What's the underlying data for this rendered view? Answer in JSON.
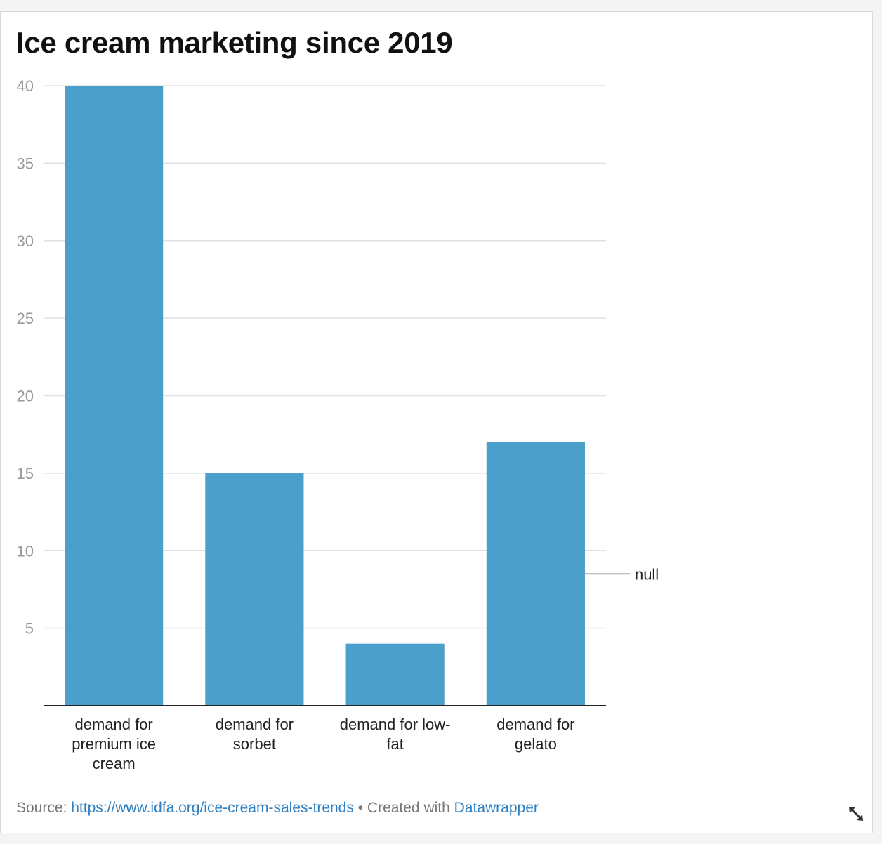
{
  "title": "Ice cream marketing since 2019",
  "chart_data": {
    "type": "bar",
    "categories": [
      [
        "demand for",
        "premium ice",
        "cream"
      ],
      [
        "demand for",
        "sorbet"
      ],
      [
        "demand for low-",
        "fat"
      ],
      [
        "demand for",
        "gelato"
      ]
    ],
    "values": [
      40,
      15,
      4,
      17
    ],
    "ylim": [
      0,
      40
    ],
    "yticks": [
      5,
      10,
      15,
      20,
      25,
      30,
      35,
      40
    ],
    "grid": true,
    "bar_color": "#4b9fcb",
    "annotation": {
      "label": "null",
      "value": 8.5
    }
  },
  "footer": {
    "source_label": "Source:",
    "source_link": "https://www.idfa.org/ice-cream-sales-trends",
    "separator": "•",
    "created_label": "Created with",
    "created_link": "Datawrapper"
  }
}
